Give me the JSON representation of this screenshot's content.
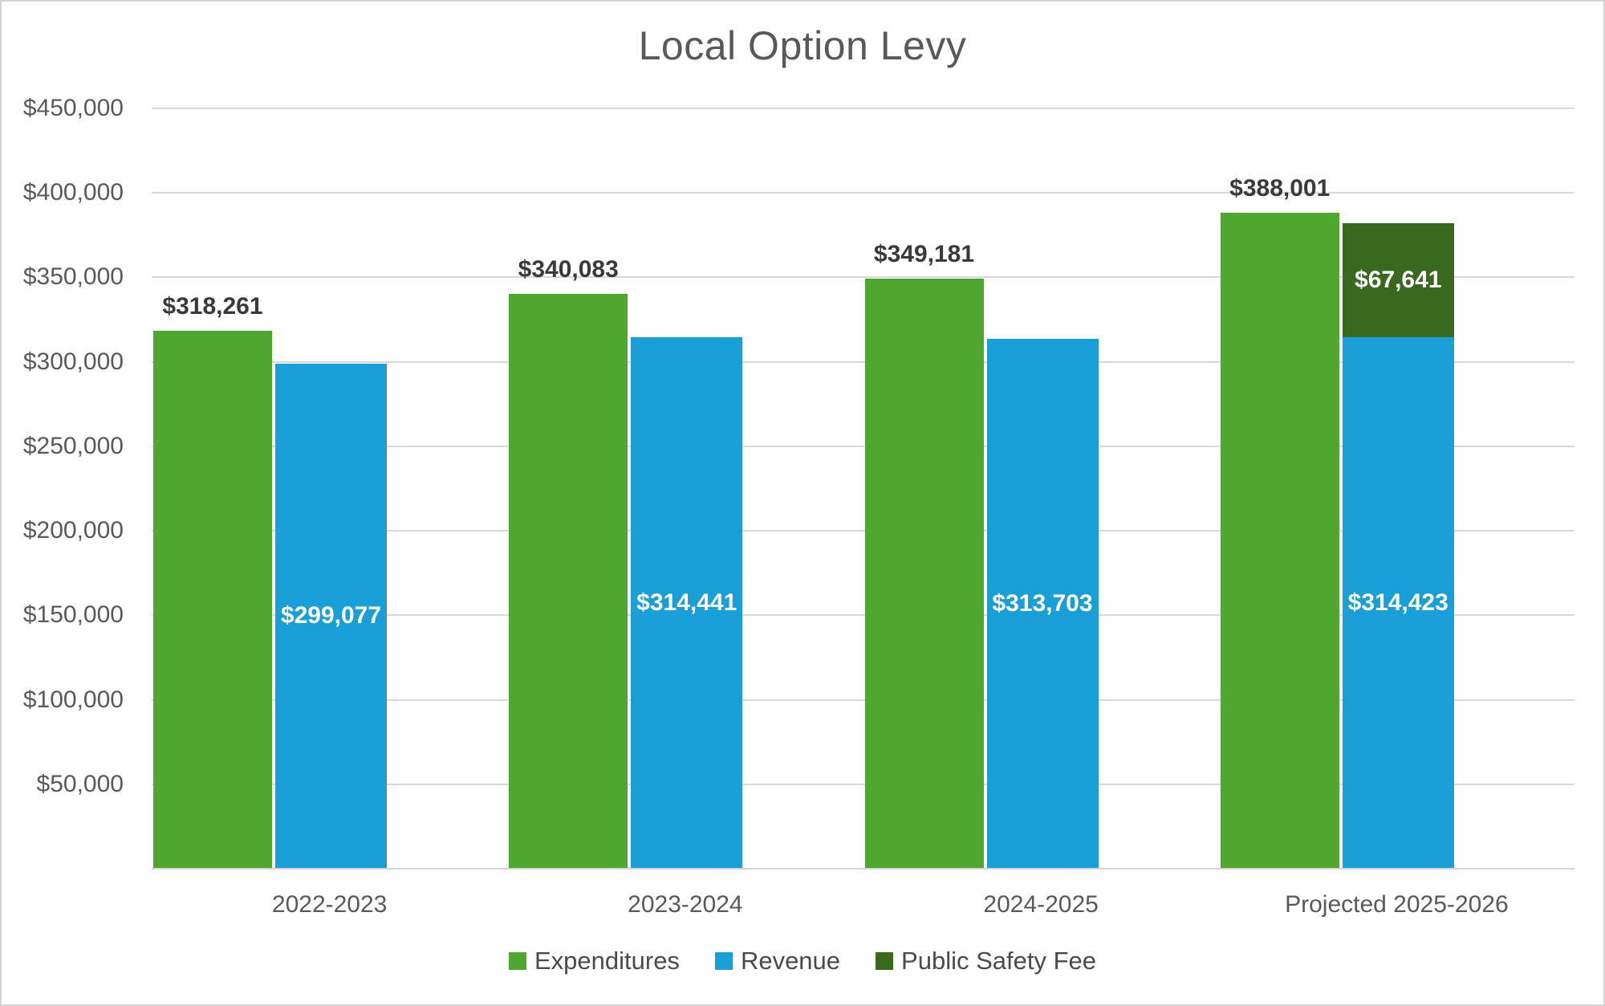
{
  "chart_data": {
    "type": "bar",
    "title": "Local Option Levy",
    "categories": [
      "2022-2023",
      "2023-2024",
      "2024-2025",
      "Projected 2025-2026"
    ],
    "series": [
      {
        "name": "Expenditures",
        "color": "#4EA72E",
        "values": [
          318261,
          340083,
          349181,
          388001
        ],
        "data_labels": [
          "$318,261",
          "$340,083",
          "$349,181",
          "$388,001"
        ],
        "label_position": "above",
        "label_color": "#3A3A3A"
      },
      {
        "name": "Revenue",
        "color": "#199ED8",
        "values": [
          299077,
          314441,
          313703,
          314423
        ],
        "data_labels": [
          "$299,077",
          "$314,441",
          "$313,703",
          "$314,423"
        ],
        "label_position": "inside-center",
        "label_color": "#FFFFFF"
      },
      {
        "name": "Public Safety Fee",
        "color": "#38691E",
        "values": [
          0,
          0,
          0,
          67641
        ],
        "data_labels": [
          "",
          "",
          "",
          "$67,641"
        ],
        "label_position": "inside-center",
        "label_color": "#FFFFFF",
        "stacked_on": "Revenue"
      }
    ],
    "y_axis": {
      "min": 0,
      "max": 450000,
      "tick_step": 50000,
      "gridlines": true,
      "ticks": [
        {
          "value": 450000,
          "label": "$450,000"
        },
        {
          "value": 400000,
          "label": "$400,000"
        },
        {
          "value": 350000,
          "label": "$350,000"
        },
        {
          "value": 300000,
          "label": "$300,000"
        },
        {
          "value": 250000,
          "label": "$250,000"
        },
        {
          "value": 200000,
          "label": "$200,000"
        },
        {
          "value": 150000,
          "label": "$150,000"
        },
        {
          "value": 100000,
          "label": "$100,000"
        },
        {
          "value": 50000,
          "label": "$50,000"
        }
      ]
    },
    "legend": {
      "position": "bottom",
      "entries": [
        "Expenditures",
        "Revenue",
        "Public Safety Fee"
      ]
    },
    "colors": {
      "gridline": "#D9D9D9",
      "axis_line": "#D6D6D6",
      "title_text": "#595959",
      "tick_text": "#595959",
      "legend_text": "#4A4A4A",
      "background": "#FFFFFF",
      "frame_border": "#D4D4D9"
    }
  }
}
